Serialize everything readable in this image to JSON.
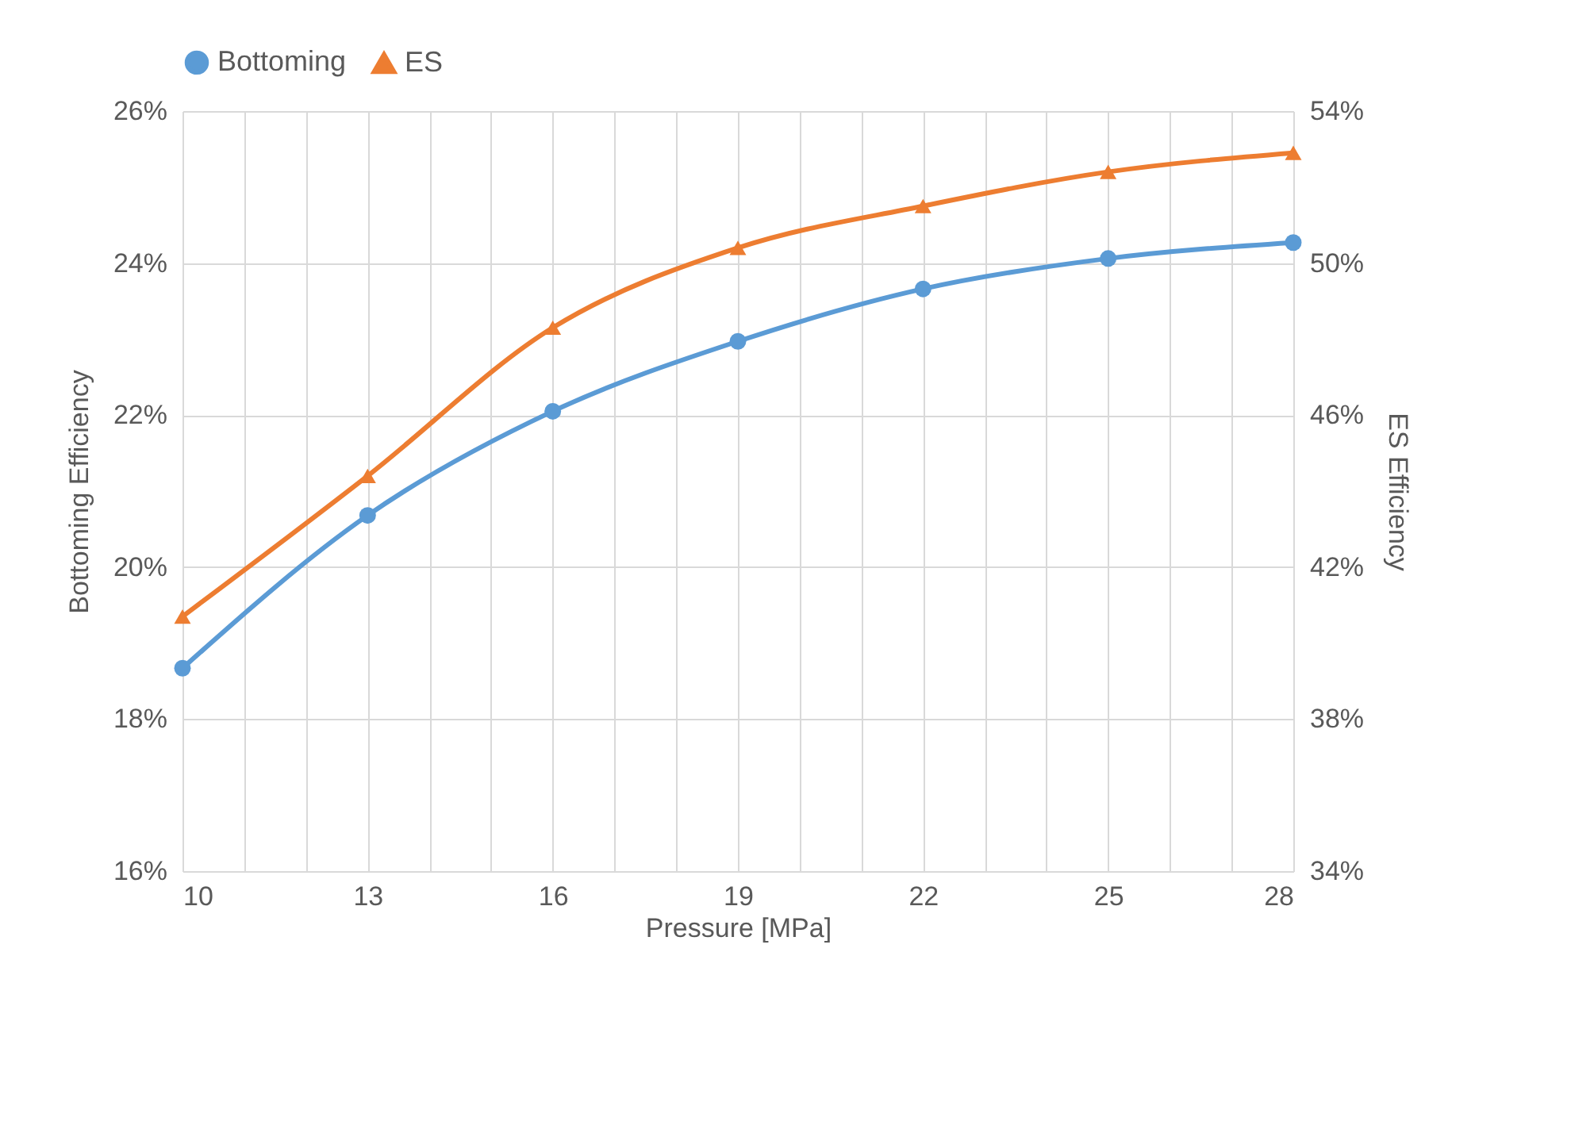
{
  "chart_data": {
    "type": "line",
    "xlabel": "Pressure [MPa]",
    "ylabel": "Bottoming Efficiency",
    "y2label": "ES Efficiency",
    "x": [
      10,
      13,
      16,
      19,
      22,
      25,
      28
    ],
    "series": [
      {
        "name": "Bottoming",
        "color": "#5b9bd5",
        "marker": "circle",
        "values": [
          18.67,
          20.68,
          22.05,
          22.97,
          23.66,
          24.06,
          24.27
        ]
      },
      {
        "name": "ES",
        "color": "#ed7d31",
        "marker": "triangle",
        "axis": "y2",
        "values": [
          40.7,
          44.4,
          48.3,
          50.4,
          51.5,
          52.4,
          52.9
        ]
      }
    ],
    "xlim": [
      10,
      28
    ],
    "xticks": [
      10,
      {
        "value": 11,
        "label": null
      },
      {
        "value": 12,
        "label": null
      },
      13,
      {
        "value": 14,
        "label": null
      },
      {
        "value": 15,
        "label": null
      },
      16,
      {
        "value": 17,
        "label": null
      },
      {
        "value": 18,
        "label": null
      },
      19,
      {
        "value": 20,
        "label": null
      },
      {
        "value": 21,
        "label": null
      },
      22,
      {
        "value": 23,
        "label": null
      },
      {
        "value": 24,
        "label": null
      },
      25,
      {
        "value": 26,
        "label": null
      },
      {
        "value": 27,
        "label": null
      },
      28
    ],
    "ylim": [
      16,
      26
    ],
    "yticks": [
      {
        "value": 16,
        "label": "16%"
      },
      {
        "value": 18,
        "label": "18%"
      },
      {
        "value": 20,
        "label": "20%"
      },
      {
        "value": 22,
        "label": "22%"
      },
      {
        "value": 24,
        "label": "24%"
      },
      {
        "value": 26,
        "label": "26%"
      }
    ],
    "y2lim": [
      34,
      54
    ],
    "y2ticks": [
      {
        "value": 34,
        "label": "34%"
      },
      {
        "value": 38,
        "label": "38%"
      },
      {
        "value": 42,
        "label": "42%"
      },
      {
        "value": 46,
        "label": "46%"
      },
      {
        "value": 50,
        "label": "50%"
      },
      {
        "value": 54,
        "label": "54%"
      }
    ],
    "grid": true,
    "legend": "top",
    "line_style": "solid"
  }
}
